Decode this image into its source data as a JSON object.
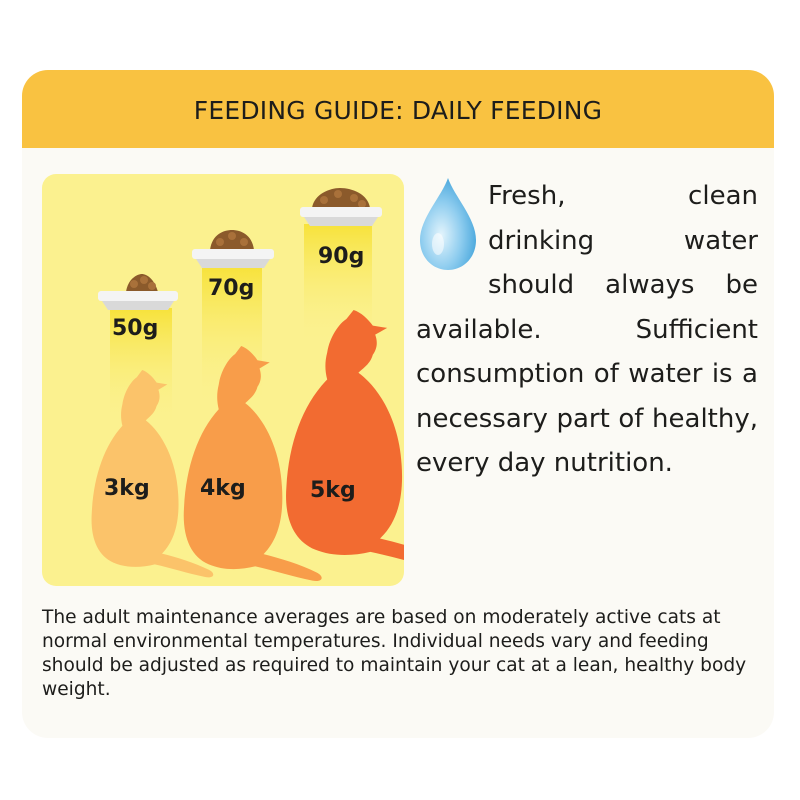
{
  "banner": {
    "title": "FEEDING GUIDE: DAILY FEEDING"
  },
  "feeding": [
    {
      "weight": "3kg",
      "amount": "50g",
      "color": "#fbc36a"
    },
    {
      "weight": "4kg",
      "amount": "70g",
      "color": "#f89d4a"
    },
    {
      "weight": "5kg",
      "amount": "90g",
      "color": "#f26b31"
    }
  ],
  "water_note": "Fresh, clean drinking water should always be available. Sufficient consumption of water is a necessary part of healthy, every day nutrition.",
  "footnote": "The adult maintenance averages are based on moderately active cats at normal environmental temperatures. Individual needs vary and feeding should be adjusted as required to maintain your cat at a lean, healthy body weight.",
  "colors": {
    "banner": "#f9c241",
    "panel": "#fbf18f",
    "kibble": "#8b5a2b",
    "bowl": "#e6e6e6",
    "water_drop": "#6cbce6"
  },
  "icons": {
    "water": "water-drop-icon",
    "bowl": "food-bowl-icon",
    "cat": "cat-silhouette"
  }
}
